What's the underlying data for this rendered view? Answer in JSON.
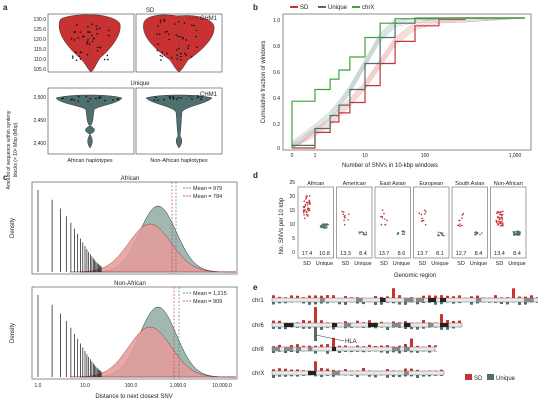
{
  "panels": {
    "a": "a",
    "b": "b",
    "c": "c",
    "d": "d",
    "e": "e"
  },
  "colors": {
    "sd": "#c83232",
    "unique": "#4f6e6e",
    "chrx": "#3fa43a",
    "sd_light": "#e69b9b",
    "unique_light": "#9fb8b2"
  },
  "panel_a": {
    "top_title": "SD",
    "bottom_title": "Unique",
    "ylabel_line1": "Amount of sequence within synteny",
    "ylabel_line2": "blocks (× 10⁶ Mbp (Mbp)",
    "top_ticks": [
      "130.0",
      "125.0",
      "120.0",
      "115.0",
      "110.0",
      "105.0"
    ],
    "bottom_ticks": [
      "2,500",
      "2,450",
      "2,400"
    ],
    "xlabels": [
      "African haplotypes",
      "Non-African haplotypes"
    ],
    "chm1_label": "CHM1"
  },
  "panel_b": {
    "legend": [
      "SD",
      "Unique",
      "chrX"
    ],
    "ylabel": "Cumulative fraction of windows",
    "xlabel": "Number of SNVs in 10-kbp windows",
    "yticks": [
      "1.0",
      "0.8",
      "0.6",
      "0.4",
      "0.2",
      "0"
    ],
    "xticks": [
      "0",
      "1",
      "10",
      "100",
      "1,000"
    ],
    "chart_data": {
      "type": "line",
      "x_scale": "log (0 shown at origin)",
      "series": [
        {
          "name": "SD",
          "x": [
            0,
            1,
            2,
            3,
            5,
            10,
            20,
            40,
            100,
            300,
            1000
          ],
          "y": [
            0.0,
            0.12,
            0.2,
            0.27,
            0.35,
            0.48,
            0.65,
            0.82,
            0.94,
            0.99,
            1.0
          ]
        },
        {
          "name": "Unique",
          "x": [
            0,
            1,
            2,
            3,
            5,
            10,
            20,
            40,
            100,
            300,
            1000
          ],
          "y": [
            0.02,
            0.15,
            0.25,
            0.33,
            0.45,
            0.65,
            0.85,
            0.96,
            0.995,
            1.0,
            1.0
          ]
        },
        {
          "name": "chrX",
          "x": [
            0,
            1,
            2,
            3,
            5,
            10,
            20,
            40,
            100,
            300,
            1000
          ],
          "y": [
            0.36,
            0.45,
            0.53,
            0.6,
            0.7,
            0.85,
            0.96,
            0.995,
            1.0,
            1.0,
            1.0
          ]
        }
      ]
    }
  },
  "panel_c": {
    "top_title": "African",
    "bottom_title": "Non-African",
    "ylabel": "Density",
    "xlabel": "Distance to next closest SNV",
    "xticks": [
      "1.0",
      "10.0",
      "100.0",
      "1,000.0",
      "10,000.0"
    ],
    "top_means": [
      "Mean = 979",
      "Mean = 784"
    ],
    "bottom_means": [
      "Mean = 1,215",
      "Mean = 909"
    ]
  },
  "panel_d": {
    "ylabel": "No. SNVs per 10 kbp",
    "xlabel": "Genomic region",
    "yticks": [
      "25",
      "20",
      "15",
      "10",
      "5",
      "0"
    ],
    "groups": [
      {
        "name": "African",
        "sd_median": "17.4",
        "unique_median": "10.8"
      },
      {
        "name": "American",
        "sd_median": "13.3",
        "unique_median": "8.4"
      },
      {
        "name": "East Asian",
        "sd_median": "13.7",
        "unique_median": "8.6"
      },
      {
        "name": "European",
        "sd_median": "13.7",
        "unique_median": "8.1"
      },
      {
        "name": "South Asian",
        "sd_median": "12.7",
        "unique_median": "8.4"
      },
      {
        "name": "Non-African",
        "sd_median": "13.4",
        "unique_median": "8.4"
      }
    ],
    "xcat": [
      "SD",
      "Unique"
    ]
  },
  "panel_e": {
    "chroms": [
      "chr1",
      "chr6",
      "chr8",
      "chrX"
    ],
    "hla_label": "HLA",
    "legend": [
      "SD",
      "Unique"
    ]
  }
}
